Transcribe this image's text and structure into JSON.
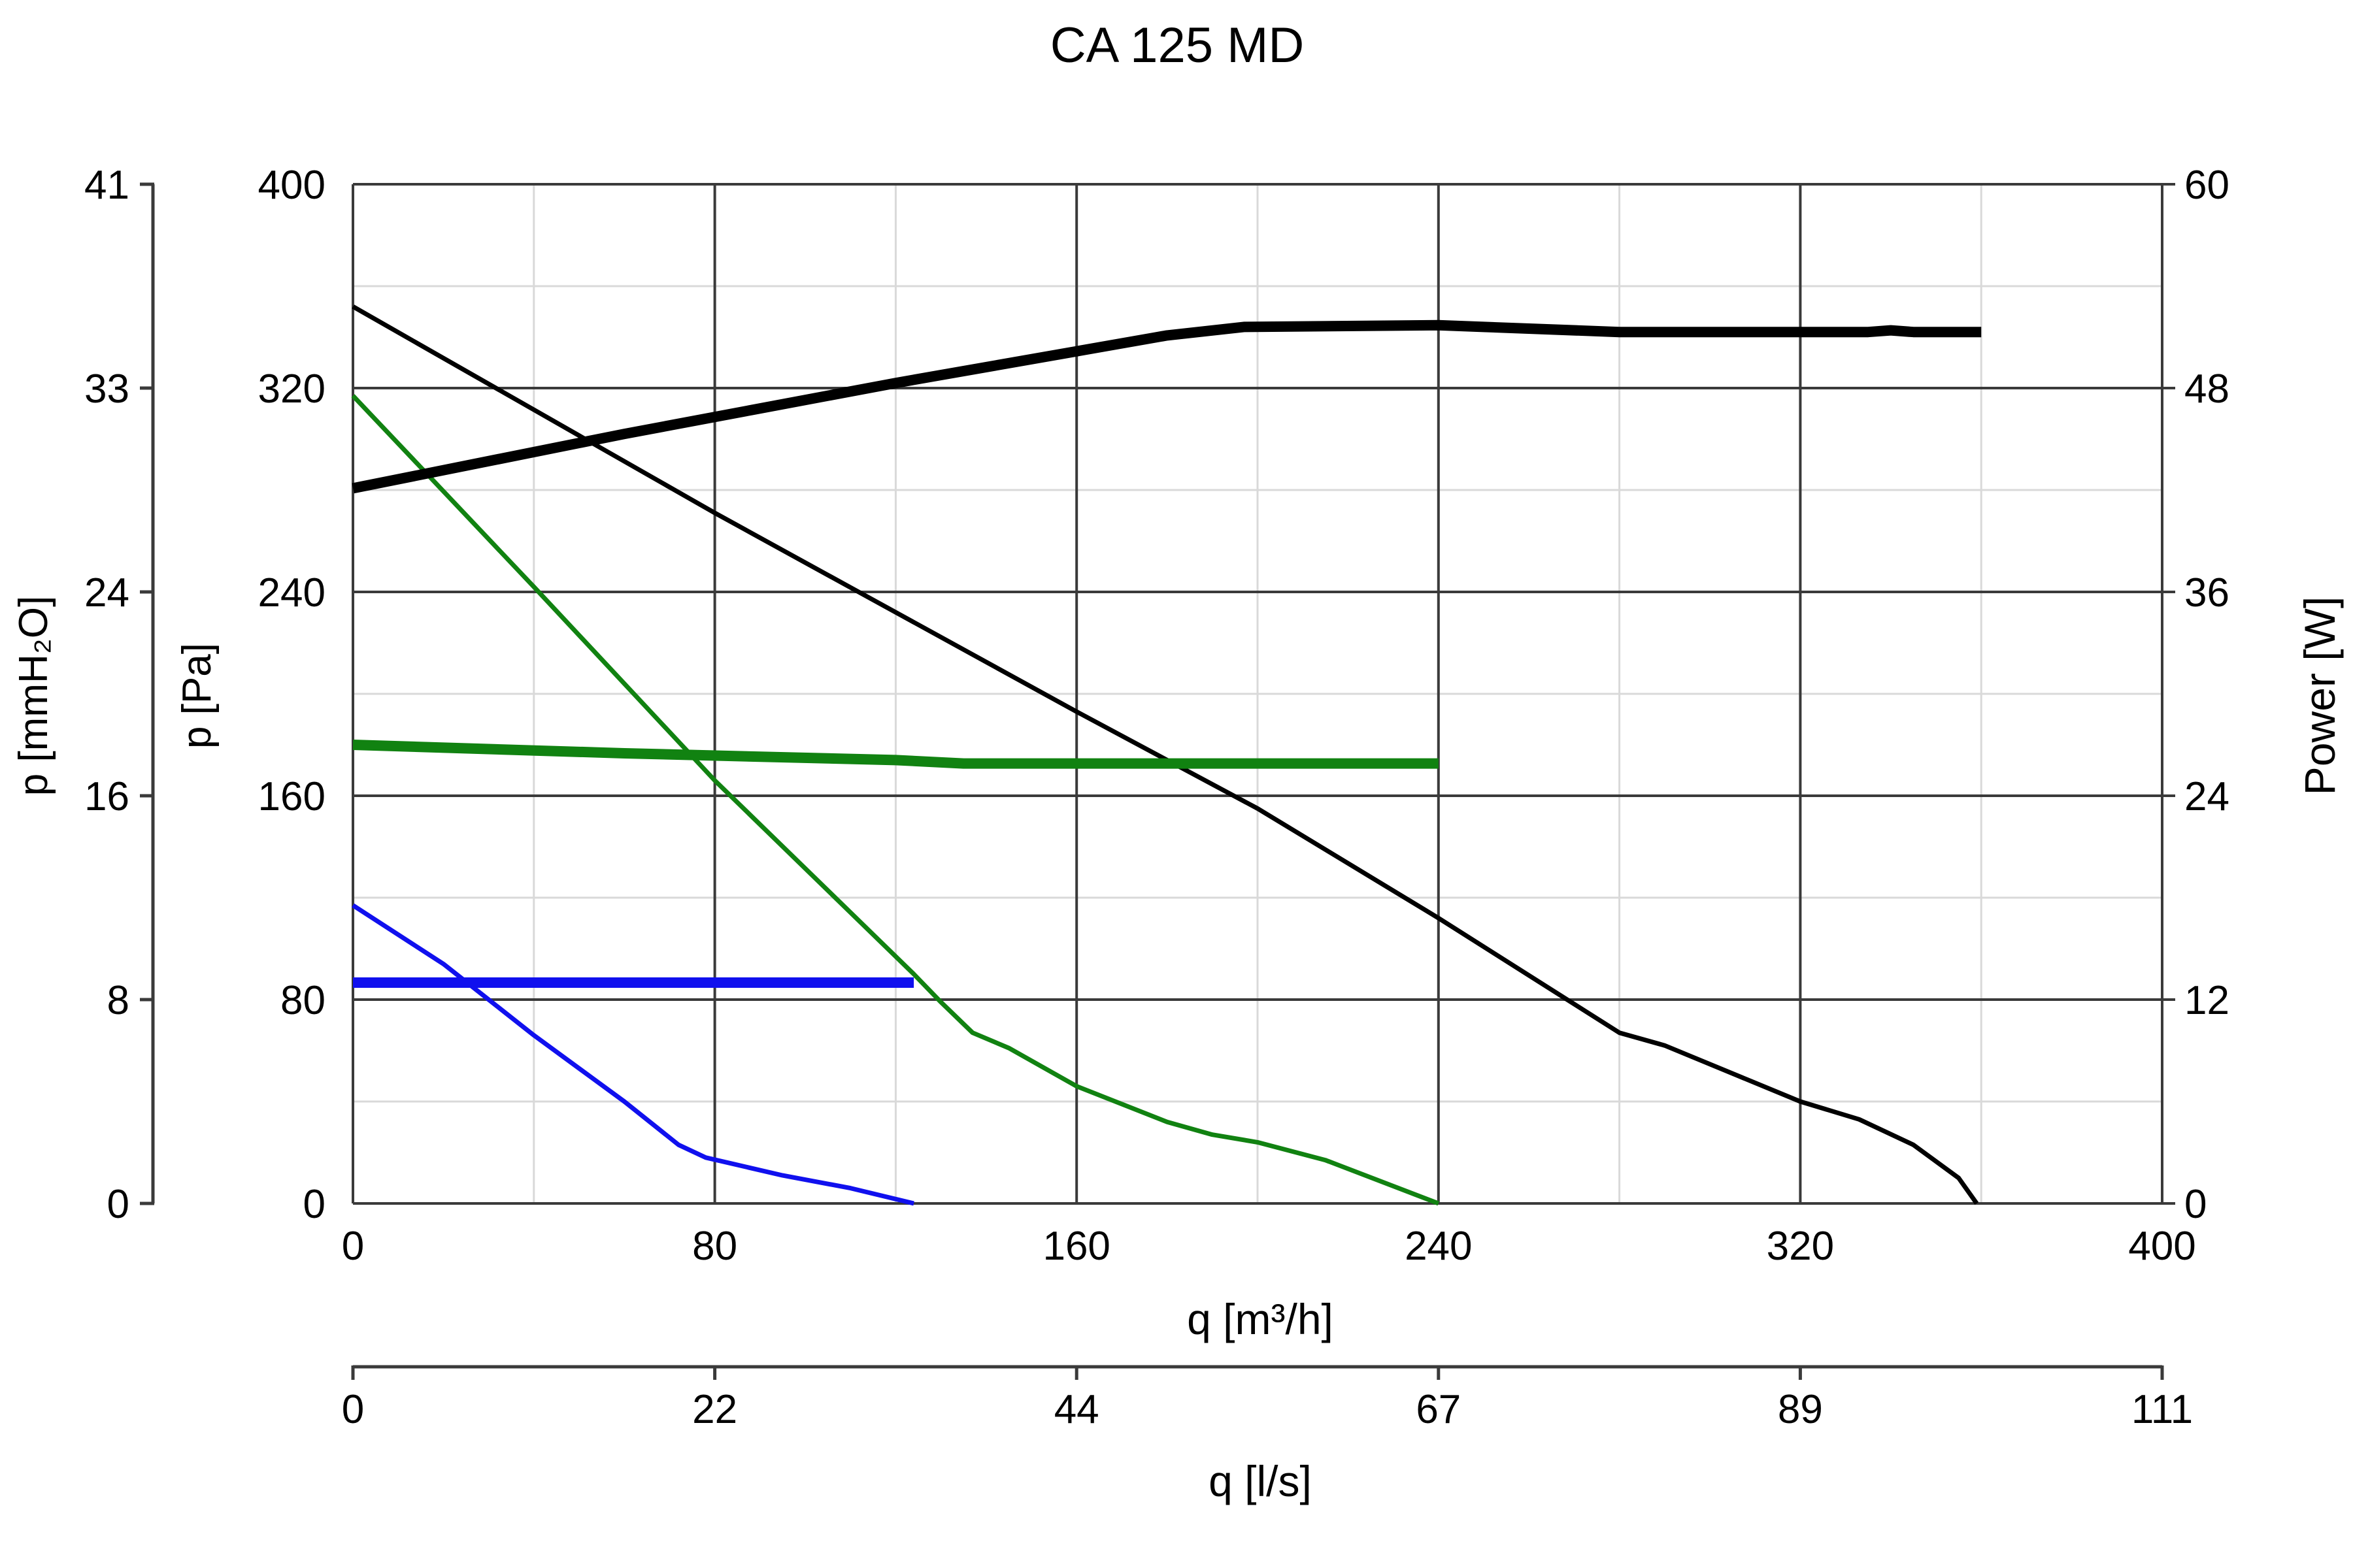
{
  "chart_data": {
    "type": "line",
    "title": "CA 125 MD",
    "xlabel": "q [m³/h]",
    "xlim": [
      0,
      400
    ],
    "xticks": [
      0,
      80,
      160,
      240,
      320,
      400
    ],
    "x_minor_gridlines": [
      40,
      120,
      200,
      280,
      360
    ],
    "ylabel": "p [Pa]",
    "ylim": [
      0,
      400
    ],
    "yticks": [
      0,
      80,
      160,
      240,
      320,
      400
    ],
    "y_minor_gridlines": [
      40,
      120,
      200,
      280,
      360
    ],
    "secondary_x": {
      "label": "q [l/s]",
      "ticks": [
        {
          "at": 0,
          "label": "0"
        },
        {
          "at": 80,
          "label": "22"
        },
        {
          "at": 160,
          "label": "44"
        },
        {
          "at": 240,
          "label": "67"
        },
        {
          "at": 320,
          "label": "89"
        },
        {
          "at": 400,
          "label": "111"
        }
      ]
    },
    "secondary_y_left": {
      "label": "p [mmH₂O]",
      "ticks": [
        {
          "at": 0,
          "label": "0"
        },
        {
          "at": 80,
          "label": "8"
        },
        {
          "at": 160,
          "label": "16"
        },
        {
          "at": 240,
          "label": "24"
        },
        {
          "at": 320,
          "label": "33"
        },
        {
          "at": 400,
          "label": "41"
        }
      ]
    },
    "secondary_y_right": {
      "label": "Power [W]",
      "ylim": [
        0,
        60
      ],
      "ticks": [
        0,
        12,
        24,
        36,
        48,
        60
      ]
    },
    "grid": true,
    "series": [
      {
        "axis": "pressure",
        "color": "#000000",
        "style": "thin",
        "points": [
          [
            0,
            352
          ],
          [
            80,
            271
          ],
          [
            160,
            193
          ],
          [
            200,
            155
          ],
          [
            240,
            112
          ],
          [
            280,
            67
          ],
          [
            290,
            62
          ],
          [
            320,
            40
          ],
          [
            333,
            33
          ],
          [
            345,
            23
          ],
          [
            355,
            10
          ],
          [
            359,
            0
          ]
        ]
      },
      {
        "axis": "pressure",
        "color": "#118211",
        "style": "thin",
        "points": [
          [
            0,
            317
          ],
          [
            40,
            242
          ],
          [
            80,
            166
          ],
          [
            124,
            90
          ],
          [
            130,
            79
          ],
          [
            137,
            67
          ],
          [
            145,
            61
          ],
          [
            160,
            46
          ],
          [
            180,
            32
          ],
          [
            190,
            27
          ],
          [
            200,
            24
          ],
          [
            215,
            17
          ],
          [
            240,
            0
          ]
        ]
      },
      {
        "axis": "pressure",
        "color": "#1010ee",
        "style": "thin",
        "points": [
          [
            0,
            117
          ],
          [
            20,
            94
          ],
          [
            40,
            66
          ],
          [
            60,
            40
          ],
          [
            72,
            23
          ],
          [
            78,
            18
          ],
          [
            95,
            11
          ],
          [
            110,
            6
          ],
          [
            124,
            0
          ]
        ]
      },
      {
        "axis": "power",
        "color": "#000000",
        "style": "thick",
        "points": [
          [
            0,
            42.1
          ],
          [
            60,
            45.3
          ],
          [
            120,
            48.3
          ],
          [
            180,
            51.1
          ],
          [
            197,
            51.6
          ],
          [
            240,
            51.7
          ],
          [
            280,
            51.3
          ],
          [
            335,
            51.3
          ],
          [
            340,
            51.4
          ],
          [
            345,
            51.3
          ],
          [
            360,
            51.3
          ]
        ]
      },
      {
        "axis": "power",
        "color": "#118211",
        "style": "thick",
        "points": [
          [
            0,
            27.0
          ],
          [
            60,
            26.5
          ],
          [
            120,
            26.1
          ],
          [
            135,
            25.9
          ],
          [
            240,
            25.9
          ]
        ]
      },
      {
        "axis": "power",
        "color": "#1010ee",
        "style": "thick",
        "points": [
          [
            0,
            13.0
          ],
          [
            124,
            13.0
          ]
        ]
      }
    ]
  }
}
